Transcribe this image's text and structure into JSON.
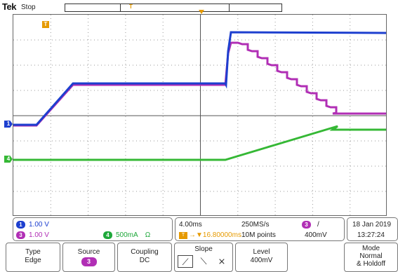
{
  "header": {
    "brand": "Tek",
    "run_state": "Stop"
  },
  "channels": {
    "ch1": {
      "number": "1",
      "scale": "1.00 V",
      "color": "#1d3fcf"
    },
    "ch3": {
      "number": "3",
      "scale": "1.00 V",
      "color": "#b12fb5"
    },
    "ch4": {
      "number": "4",
      "scale": "500mA",
      "unit_symbol": "Ω",
      "color": "#1ea83a"
    }
  },
  "markers": {
    "ch1": "1",
    "ch4": "4",
    "trigger": "T"
  },
  "timebase": {
    "time_per_div": "4.00ms",
    "trigger_delay": "16.80000ms",
    "sample_rate": "250MS/s",
    "record_length": "10M points",
    "trigger_channel": "3",
    "trigger_slope_symbol": "/",
    "trigger_level": "400mV"
  },
  "datetime": {
    "date": "18 Jan 2019",
    "time": "13:27:24"
  },
  "menu": {
    "type": {
      "label": "Type",
      "value": "Edge"
    },
    "source": {
      "label": "Source",
      "value": "3"
    },
    "coupling": {
      "label": "Coupling",
      "value": "DC"
    },
    "slope": {
      "label": "Slope",
      "icons": [
        "rising-edge-icon",
        "falling-edge-icon",
        "either-edge-icon"
      ],
      "selected": "rising-edge-icon"
    },
    "level": {
      "label": "Level",
      "value": "400mV"
    },
    "mode": {
      "label": "Mode",
      "value": "Normal",
      "value2": "& Holdoff"
    }
  },
  "colors": {
    "ch1": "#1d3fcf",
    "ch3": "#b12fb5",
    "ch4": "#35b835",
    "trigger": "#e69a00"
  }
}
